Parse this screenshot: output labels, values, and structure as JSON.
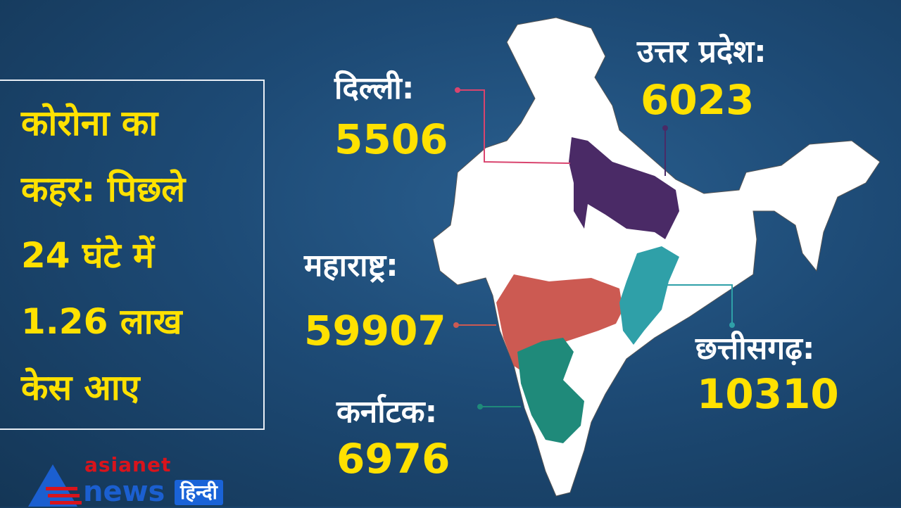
{
  "headline": "कोरोना का\nकहर: पिछले\n24 घंटे में\n1.26 लाख\nकेस आए",
  "states": [
    {
      "name": "दिल्ली:",
      "cases": "5506",
      "color": "#d9446e"
    },
    {
      "name": "उत्तर प्रदेश:",
      "cases": "6023",
      "color": "#4a2a66"
    },
    {
      "name": "महाराष्ट्र:",
      "cases": "59907",
      "color": "#cc5a52"
    },
    {
      "name": "कर्नाटक:",
      "cases": "6976",
      "color": "#1f8a7a"
    },
    {
      "name": "छत्तीसगढ़:",
      "cases": "10310",
      "color": "#2fa0a8"
    }
  ],
  "colors": {
    "accent": "#ffe100",
    "background": "#1d4a75"
  },
  "logo": {
    "brand": "asianet",
    "sub": "news",
    "lang": "हिन्दी"
  }
}
